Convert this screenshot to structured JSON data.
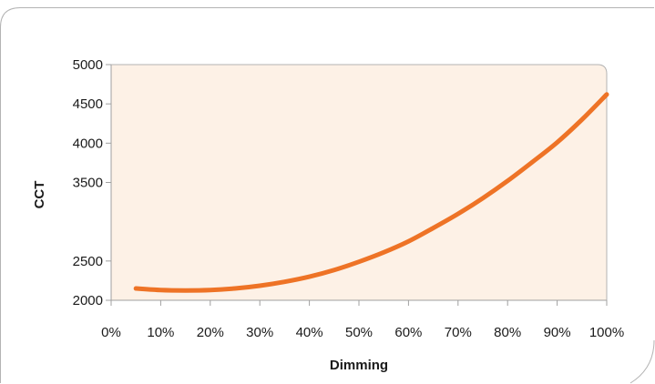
{
  "chart_data": {
    "type": "line",
    "title": "",
    "xlabel": "Dimming",
    "ylabel": "CCT",
    "x_unit": "%",
    "xlim": [
      0,
      100
    ],
    "ylim": [
      2000,
      5000
    ],
    "x_ticks": [
      "0%",
      "10%",
      "20%",
      "30%",
      "40%",
      "50%",
      "60%",
      "70%",
      "80%",
      "90%",
      "100%"
    ],
    "y_ticks": [
      "5000",
      "4500",
      "4000",
      "3500",
      "2500",
      "2000"
    ],
    "grid": false,
    "legend": "none",
    "series": [
      {
        "color": "#ee7326",
        "x": [
          5,
          10,
          15,
          20,
          25,
          30,
          35,
          40,
          45,
          50,
          55,
          60,
          65,
          70,
          75,
          80,
          85,
          90,
          95,
          100
        ],
        "y": [
          2150,
          2130,
          2125,
          2130,
          2150,
          2185,
          2235,
          2300,
          2385,
          2490,
          2610,
          2750,
          2920,
          3100,
          3300,
          3520,
          3760,
          4010,
          4300,
          4620
        ]
      }
    ]
  },
  "colors": {
    "plot_background": "#fdf1e6",
    "frame": "#b3b3b3",
    "axis": "#a0a0a0"
  }
}
